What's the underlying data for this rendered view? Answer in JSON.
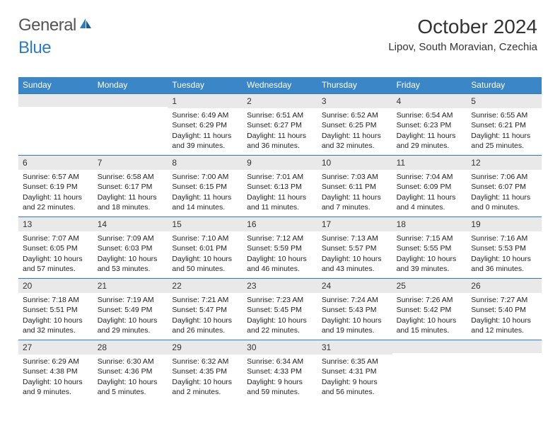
{
  "logo": {
    "text1": "General",
    "text2": "Blue"
  },
  "title": "October 2024",
  "location": "Lipov, South Moravian, Czechia",
  "colors": {
    "header_bg": "#3b86c7",
    "rule": "#2d7bc0",
    "daynum_bg": "#e9e9e9",
    "text": "#222222",
    "logo_gray": "#555555",
    "logo_blue": "#2d7bc0",
    "page_bg": "#ffffff"
  },
  "fonts": {
    "title_size_pt": 21,
    "location_size_pt": 11,
    "weekday_size_pt": 9,
    "daynum_size_pt": 9,
    "body_size_pt": 8
  },
  "weekdays": [
    "Sunday",
    "Monday",
    "Tuesday",
    "Wednesday",
    "Thursday",
    "Friday",
    "Saturday"
  ],
  "weeks": [
    [
      null,
      null,
      {
        "n": "1",
        "sr": "6:49 AM",
        "ss": "6:29 PM",
        "dl": "11 hours and 39 minutes."
      },
      {
        "n": "2",
        "sr": "6:51 AM",
        "ss": "6:27 PM",
        "dl": "11 hours and 36 minutes."
      },
      {
        "n": "3",
        "sr": "6:52 AM",
        "ss": "6:25 PM",
        "dl": "11 hours and 32 minutes."
      },
      {
        "n": "4",
        "sr": "6:54 AM",
        "ss": "6:23 PM",
        "dl": "11 hours and 29 minutes."
      },
      {
        "n": "5",
        "sr": "6:55 AM",
        "ss": "6:21 PM",
        "dl": "11 hours and 25 minutes."
      }
    ],
    [
      {
        "n": "6",
        "sr": "6:57 AM",
        "ss": "6:19 PM",
        "dl": "11 hours and 22 minutes."
      },
      {
        "n": "7",
        "sr": "6:58 AM",
        "ss": "6:17 PM",
        "dl": "11 hours and 18 minutes."
      },
      {
        "n": "8",
        "sr": "7:00 AM",
        "ss": "6:15 PM",
        "dl": "11 hours and 14 minutes."
      },
      {
        "n": "9",
        "sr": "7:01 AM",
        "ss": "6:13 PM",
        "dl": "11 hours and 11 minutes."
      },
      {
        "n": "10",
        "sr": "7:03 AM",
        "ss": "6:11 PM",
        "dl": "11 hours and 7 minutes."
      },
      {
        "n": "11",
        "sr": "7:04 AM",
        "ss": "6:09 PM",
        "dl": "11 hours and 4 minutes."
      },
      {
        "n": "12",
        "sr": "7:06 AM",
        "ss": "6:07 PM",
        "dl": "11 hours and 0 minutes."
      }
    ],
    [
      {
        "n": "13",
        "sr": "7:07 AM",
        "ss": "6:05 PM",
        "dl": "10 hours and 57 minutes."
      },
      {
        "n": "14",
        "sr": "7:09 AM",
        "ss": "6:03 PM",
        "dl": "10 hours and 53 minutes."
      },
      {
        "n": "15",
        "sr": "7:10 AM",
        "ss": "6:01 PM",
        "dl": "10 hours and 50 minutes."
      },
      {
        "n": "16",
        "sr": "7:12 AM",
        "ss": "5:59 PM",
        "dl": "10 hours and 46 minutes."
      },
      {
        "n": "17",
        "sr": "7:13 AM",
        "ss": "5:57 PM",
        "dl": "10 hours and 43 minutes."
      },
      {
        "n": "18",
        "sr": "7:15 AM",
        "ss": "5:55 PM",
        "dl": "10 hours and 39 minutes."
      },
      {
        "n": "19",
        "sr": "7:16 AM",
        "ss": "5:53 PM",
        "dl": "10 hours and 36 minutes."
      }
    ],
    [
      {
        "n": "20",
        "sr": "7:18 AM",
        "ss": "5:51 PM",
        "dl": "10 hours and 32 minutes."
      },
      {
        "n": "21",
        "sr": "7:19 AM",
        "ss": "5:49 PM",
        "dl": "10 hours and 29 minutes."
      },
      {
        "n": "22",
        "sr": "7:21 AM",
        "ss": "5:47 PM",
        "dl": "10 hours and 26 minutes."
      },
      {
        "n": "23",
        "sr": "7:23 AM",
        "ss": "5:45 PM",
        "dl": "10 hours and 22 minutes."
      },
      {
        "n": "24",
        "sr": "7:24 AM",
        "ss": "5:43 PM",
        "dl": "10 hours and 19 minutes."
      },
      {
        "n": "25",
        "sr": "7:26 AM",
        "ss": "5:42 PM",
        "dl": "10 hours and 15 minutes."
      },
      {
        "n": "26",
        "sr": "7:27 AM",
        "ss": "5:40 PM",
        "dl": "10 hours and 12 minutes."
      }
    ],
    [
      {
        "n": "27",
        "sr": "6:29 AM",
        "ss": "4:38 PM",
        "dl": "10 hours and 9 minutes."
      },
      {
        "n": "28",
        "sr": "6:30 AM",
        "ss": "4:36 PM",
        "dl": "10 hours and 5 minutes."
      },
      {
        "n": "29",
        "sr": "6:32 AM",
        "ss": "4:35 PM",
        "dl": "10 hours and 2 minutes."
      },
      {
        "n": "30",
        "sr": "6:34 AM",
        "ss": "4:33 PM",
        "dl": "9 hours and 59 minutes."
      },
      {
        "n": "31",
        "sr": "6:35 AM",
        "ss": "4:31 PM",
        "dl": "9 hours and 56 minutes."
      },
      null,
      null
    ]
  ],
  "labels": {
    "sunrise": "Sunrise:",
    "sunset": "Sunset:",
    "daylight": "Daylight:"
  }
}
